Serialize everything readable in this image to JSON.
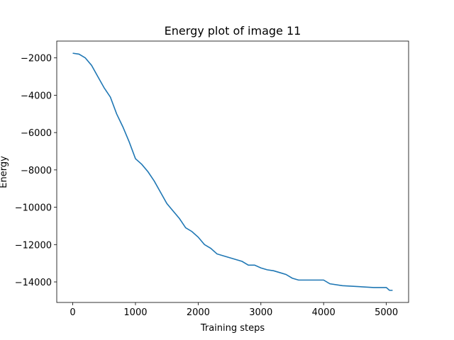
{
  "chart_data": {
    "type": "line",
    "title": "Energy plot of image 11",
    "x_label": "Training steps",
    "y_label": "Energy",
    "series": [
      {
        "color": "#1f77b4",
        "x": [
          0,
          100,
          200,
          300,
          400,
          500,
          600,
          700,
          800,
          900,
          1000,
          1100,
          1200,
          1300,
          1400,
          1500,
          1600,
          1700,
          1800,
          1900,
          2000,
          2100,
          2200,
          2300,
          2400,
          2500,
          2600,
          2700,
          2800,
          2900,
          3000,
          3100,
          3200,
          3300,
          3400,
          3500,
          3600,
          3800,
          4000,
          4100,
          4300,
          4800,
          5000,
          5050,
          5100
        ],
        "values": [
          -1750,
          -1800,
          -2000,
          -2400,
          -3000,
          -3600,
          -4100,
          -5000,
          -5700,
          -6500,
          -7400,
          -7700,
          -8100,
          -8600,
          -9200,
          -9800,
          -10200,
          -10600,
          -11100,
          -11300,
          -11600,
          -12000,
          -12200,
          -12500,
          -12600,
          -12700,
          -12800,
          -12900,
          -13100,
          -13100,
          -13250,
          -13350,
          -13400,
          -13500,
          -13600,
          -13800,
          -13900,
          -13900,
          -13900,
          -14100,
          -14200,
          -14300,
          -14300,
          -14450,
          -14450
        ]
      }
    ],
    "xlim": [
      -255,
      5355
    ],
    "ylim": [
      -15100,
      -1100
    ],
    "xticks": [
      0,
      1000,
      2000,
      3000,
      4000,
      5000
    ],
    "yticks": [
      {
        "value": -14000,
        "label": "−14000"
      },
      {
        "value": -12000,
        "label": "−12000"
      },
      {
        "value": -10000,
        "label": "−10000"
      },
      {
        "value": -8000,
        "label": "−8000"
      },
      {
        "value": -6000,
        "label": "−6000"
      },
      {
        "value": -4000,
        "label": "−4000"
      },
      {
        "value": -2000,
        "label": "−2000"
      }
    ]
  }
}
